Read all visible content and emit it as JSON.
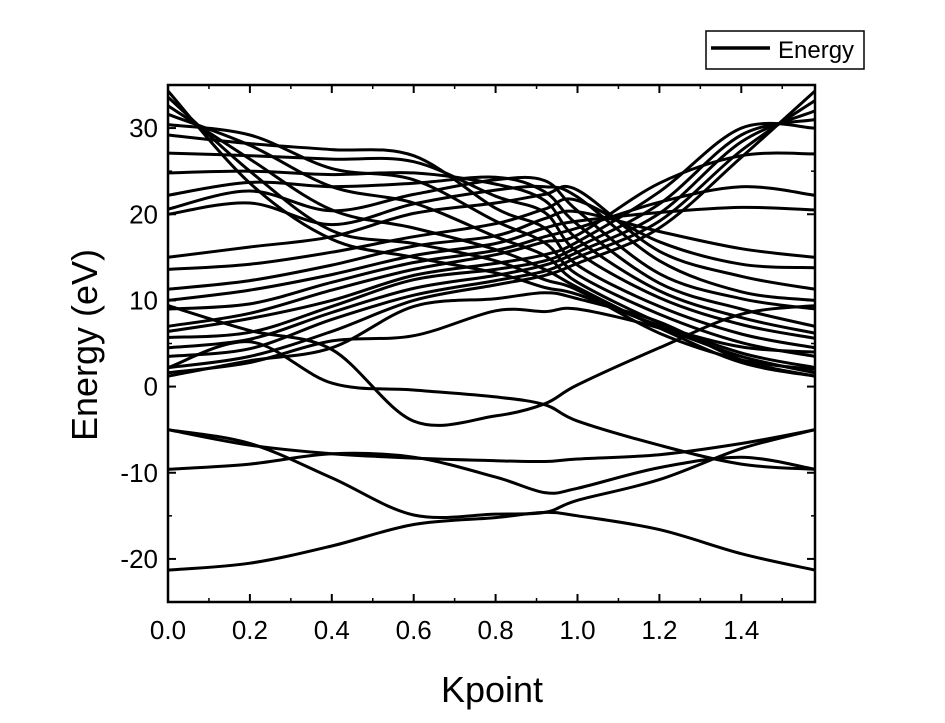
{
  "chart_data": {
    "type": "line",
    "title": "",
    "xlabel": "Kpoint",
    "ylabel": "Energy (eV)",
    "xlim": [
      0.0,
      1.58
    ],
    "ylim": [
      -25,
      35
    ],
    "xticks": [
      0.0,
      0.2,
      0.4,
      0.6,
      0.8,
      1.0,
      1.2,
      1.4
    ],
    "xtick_labels": [
      "0.0",
      "0.2",
      "0.4",
      "0.6",
      "0.8",
      "1.0",
      "1.2",
      "1.4"
    ],
    "yticks": [
      -20,
      -10,
      0,
      10,
      20,
      30
    ],
    "ytick_labels": [
      "-20",
      "-10",
      "0",
      "10",
      "20",
      "30"
    ],
    "grid": false,
    "legend": {
      "position": "top-right",
      "entries": [
        "Energy"
      ]
    },
    "series_color": "#000000",
    "x": [
      0.0,
      0.2,
      0.4,
      0.6,
      0.8,
      0.92,
      1.0,
      1.2,
      1.4,
      1.58
    ],
    "series": [
      {
        "values": [
          -21.3,
          -20.5,
          -18.5,
          -16.0,
          -15.2,
          -14.6,
          -15.0,
          -16.6,
          -19.4,
          -21.3
        ]
      },
      {
        "values": [
          -9.6,
          -9.0,
          -7.8,
          -8.2,
          -10.5,
          -12.3,
          -11.8,
          -9.4,
          -8.2,
          -9.6
        ]
      },
      {
        "values": [
          -5.0,
          -6.6,
          -10.6,
          -14.9,
          -14.8,
          -14.6,
          -13.2,
          -10.8,
          -7.2,
          -5.0
        ]
      },
      {
        "values": [
          -5.0,
          -6.8,
          -7.8,
          -8.3,
          -8.6,
          -8.7,
          -8.4,
          -7.9,
          -6.6,
          -5.0
        ]
      },
      {
        "values": [
          1.6,
          2.8,
          5.3,
          5.9,
          8.8,
          8.7,
          9.0,
          6.8,
          3.5,
          1.6
        ]
      },
      {
        "values": [
          2.2,
          5.2,
          0.4,
          -0.4,
          -1.2,
          -2.1,
          -4.0,
          -6.8,
          -9.0,
          -9.6
        ]
      },
      {
        "values": [
          9.4,
          6.5,
          4.3,
          -4.0,
          -3.4,
          -2.0,
          0.2,
          4.5,
          8.4,
          9.4
        ]
      },
      {
        "values": [
          1.2,
          3.0,
          4.5,
          9.3,
          10.2,
          10.9,
          10.2,
          7.5,
          3.1,
          1.2
        ]
      },
      {
        "values": [
          2.2,
          3.5,
          6.4,
          10.0,
          11.8,
          12.9,
          14.3,
          18.4,
          26.6,
          34.3
        ]
      },
      {
        "values": [
          3.5,
          4.4,
          7.8,
          10.6,
          12.3,
          13.4,
          15.0,
          19.2,
          27.4,
          33.2
        ]
      },
      {
        "values": [
          4.5,
          5.5,
          8.6,
          11.4,
          12.9,
          14.1,
          15.6,
          20.1,
          28.4,
          32.0
        ]
      },
      {
        "values": [
          5.7,
          6.3,
          9.3,
          12.4,
          13.6,
          14.6,
          16.2,
          21.2,
          29.2,
          31.0
        ]
      },
      {
        "values": [
          6.4,
          7.9,
          10.0,
          12.9,
          14.3,
          15.3,
          16.8,
          22.6,
          30.0,
          30.0
        ]
      },
      {
        "values": [
          7.0,
          8.5,
          11.2,
          13.6,
          15.3,
          16.8,
          17.6,
          23.6,
          26.8,
          27.0
        ]
      },
      {
        "values": [
          9.0,
          9.6,
          12.1,
          14.4,
          15.8,
          17.4,
          18.4,
          21.4,
          23.2,
          22.2
        ]
      },
      {
        "values": [
          10.0,
          11.2,
          13.0,
          15.2,
          16.6,
          18.4,
          19.2,
          20.2,
          20.8,
          20.5
        ]
      },
      {
        "values": [
          11.3,
          12.3,
          14.1,
          16.3,
          17.5,
          19.5,
          20.3,
          18.0,
          16.0,
          15.0
        ]
      },
      {
        "values": [
          13.6,
          14.2,
          15.6,
          17.4,
          18.9,
          20.6,
          21.6,
          16.8,
          14.2,
          13.8
        ]
      },
      {
        "values": [
          15.0,
          16.2,
          17.4,
          20.1,
          21.3,
          22.3,
          22.8,
          15.7,
          12.8,
          11.3
        ]
      },
      {
        "values": [
          20.0,
          21.3,
          18.8,
          21.2,
          22.8,
          23.2,
          22.0,
          14.6,
          11.0,
          10.0
        ]
      },
      {
        "values": [
          20.6,
          22.7,
          20.4,
          22.3,
          24.0,
          23.9,
          20.4,
          13.1,
          10.2,
          9.0
        ]
      },
      {
        "values": [
          22.2,
          23.7,
          23.2,
          23.6,
          24.3,
          22.6,
          18.8,
          12.0,
          9.0,
          7.0
        ]
      },
      {
        "values": [
          24.8,
          25.0,
          24.6,
          24.8,
          23.5,
          21.6,
          17.1,
          11.1,
          8.0,
          6.2
        ]
      },
      {
        "values": [
          27.1,
          26.8,
          26.4,
          26.1,
          22.1,
          20.2,
          15.6,
          10.3,
          7.2,
          5.6
        ]
      },
      {
        "values": [
          29.2,
          28.2,
          27.5,
          26.8,
          20.7,
          18.4,
          14.1,
          9.3,
          6.1,
          4.5
        ]
      },
      {
        "values": [
          30.4,
          29.2,
          25.3,
          24.0,
          19.2,
          16.7,
          13.0,
          8.4,
          5.1,
          3.5
        ]
      },
      {
        "values": [
          31.6,
          28.0,
          23.2,
          21.3,
          17.4,
          15.2,
          12.1,
          7.4,
          3.9,
          2.2
        ]
      },
      {
        "values": [
          32.6,
          26.4,
          20.5,
          18.4,
          15.9,
          13.6,
          11.5,
          6.8,
          2.8,
          1.2
        ]
      },
      {
        "values": [
          33.6,
          25.0,
          18.1,
          16.6,
          14.6,
          12.4,
          11.2,
          6.2,
          3.1,
          2.0
        ]
      },
      {
        "values": [
          34.3,
          23.6,
          17.1,
          15.0,
          13.2,
          11.5,
          10.7,
          7.1,
          4.6,
          4.0
        ]
      }
    ]
  }
}
